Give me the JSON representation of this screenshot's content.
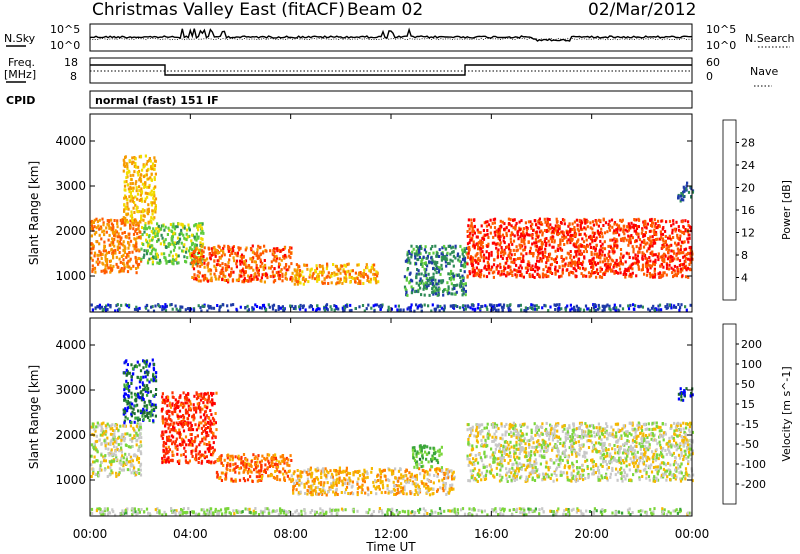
{
  "header": {
    "title": "Christmas Valley East (fitACF)",
    "beam": "Beam 02",
    "date": "02/Mar/2012"
  },
  "noise_panel": {
    "left_label": "N.Sky",
    "left_ticks": [
      "10^5",
      "10^0"
    ],
    "right_label": "N.Search",
    "right_ticks": [
      "10^5",
      "10^0"
    ]
  },
  "freq_panel": {
    "left_label_1": "Freq.",
    "left_label_2": "[MHz]",
    "left_ticks": [
      "18",
      "8"
    ],
    "right_label": "Nave",
    "right_ticks": [
      "60",
      "0"
    ]
  },
  "cpid": {
    "label": "CPID",
    "mode_text": "normal (fast) 151 IF"
  },
  "chart_data": [
    {
      "type": "heatmap",
      "title": "",
      "xlabel": "Time UT",
      "ylabel": "Slant Range [km]",
      "x_ticks": [
        "00:00",
        "04:00",
        "08:00",
        "12:00",
        "16:00",
        "20:00",
        "00:00"
      ],
      "xlim_hours": [
        0,
        24
      ],
      "y_ticks": [
        1000,
        2000,
        3000,
        4000
      ],
      "ylim": [
        200,
        4600
      ],
      "colorbar": {
        "label": "Power [dB]",
        "ticks": [
          "4",
          "8",
          "12",
          "16",
          "20",
          "24",
          "28"
        ],
        "range": [
          0,
          32
        ],
        "colors": [
          "#0000ff",
          "#1e3aa8",
          "#2e8b57",
          "#5dcb3e",
          "#f2dc00",
          "#f59a00",
          "#ff5a00",
          "#ff0000"
        ]
      },
      "regions": [
        {
          "t0": 0.0,
          "t1": 2.0,
          "r0": 1100,
          "r1": 2300,
          "value": 24
        },
        {
          "t0": 1.3,
          "t1": 2.6,
          "r0": 2200,
          "r1": 3700,
          "value": 20
        },
        {
          "t0": 2.0,
          "t1": 4.5,
          "r0": 1300,
          "r1": 2200,
          "value": 14
        },
        {
          "t0": 4.0,
          "t1": 8.0,
          "r0": 900,
          "r1": 1700,
          "value": 26
        },
        {
          "t0": 8.0,
          "t1": 11.5,
          "r0": 850,
          "r1": 1300,
          "value": 22
        },
        {
          "t0": 12.5,
          "t1": 15.0,
          "r0": 600,
          "r1": 1700,
          "value": 10
        },
        {
          "t0": 15.0,
          "t1": 24.0,
          "r0": 1000,
          "r1": 2300,
          "value": 28
        },
        {
          "t0": 23.4,
          "t1": 24.0,
          "r0": 2700,
          "r1": 3100,
          "value": 8
        },
        {
          "t0": 0.0,
          "t1": 24.0,
          "r0": 250,
          "r1": 400,
          "value": 6
        }
      ]
    },
    {
      "type": "heatmap",
      "title": "",
      "xlabel": "Time UT",
      "ylabel": "Slant Range [km]",
      "x_ticks": [
        "00:00",
        "04:00",
        "08:00",
        "12:00",
        "16:00",
        "20:00",
        "00:00"
      ],
      "xlim_hours": [
        0,
        24
      ],
      "y_ticks": [
        1000,
        2000,
        3000,
        4000
      ],
      "ylim": [
        200,
        4600
      ],
      "colorbar": {
        "label": "Velocity [m s^-1]",
        "ticks": [
          "200",
          "100",
          "50",
          "15",
          "-15",
          "-50",
          "-100",
          "-200"
        ],
        "range": [
          -250,
          250
        ],
        "colors": [
          "#0000ff",
          "#1e6e2e",
          "#3aa63a",
          "#7ad63a",
          "#c8c8c8",
          "#f5b800",
          "#ff8000",
          "#ff3000",
          "#ff0000"
        ]
      },
      "regions": [
        {
          "t0": 0.0,
          "t1": 2.0,
          "r0": 1100,
          "r1": 2300,
          "value": 0
        },
        {
          "t0": 1.3,
          "t1": 2.6,
          "r0": 2300,
          "r1": 3700,
          "value": -180
        },
        {
          "t0": 2.8,
          "t1": 5.0,
          "r0": 1400,
          "r1": 3000,
          "value": 180
        },
        {
          "t0": 5.0,
          "t1": 8.0,
          "r0": 1000,
          "r1": 1600,
          "value": 120
        },
        {
          "t0": 8.0,
          "t1": 14.5,
          "r0": 700,
          "r1": 1300,
          "value": 60
        },
        {
          "t0": 12.8,
          "t1": 14.0,
          "r0": 1300,
          "r1": 1800,
          "value": -80
        },
        {
          "t0": 15.0,
          "t1": 24.0,
          "r0": 1000,
          "r1": 2300,
          "value": 0
        },
        {
          "t0": 23.4,
          "t1": 24.0,
          "r0": 2800,
          "r1": 3100,
          "value": -200
        },
        {
          "t0": 0.0,
          "t1": 24.0,
          "r0": 250,
          "r1": 400,
          "value": -30
        }
      ]
    }
  ]
}
